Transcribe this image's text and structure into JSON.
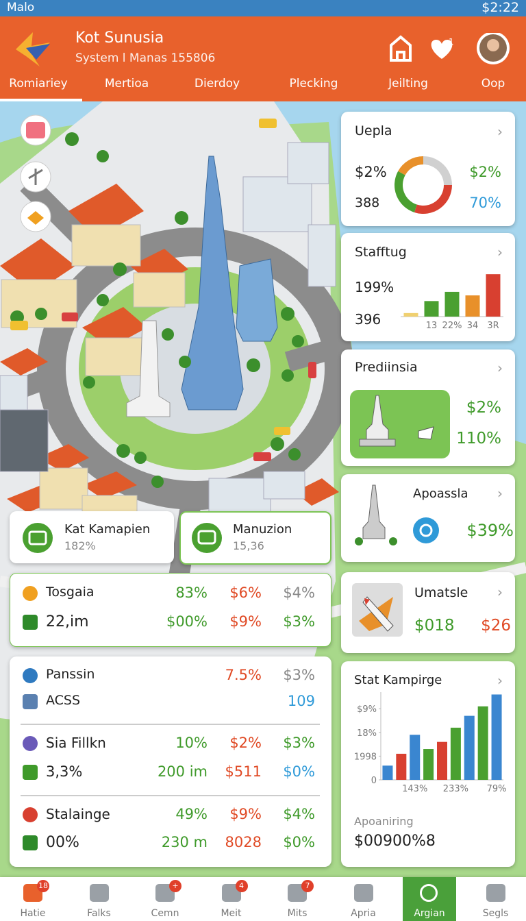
{
  "status_bar": {
    "carrier": "Malo",
    "time": "$2:22"
  },
  "header": {
    "title": "Kot Sunusia",
    "subtitle": "System l Manas 155806",
    "badge": "1",
    "tabs": [
      "Romiariey",
      "Mertioa",
      "Dierdoy",
      "Plecking",
      "Jeilting",
      "Oop"
    ]
  },
  "map_cards": [
    {
      "title": "Kat Kamapien",
      "value": "182%"
    },
    {
      "title": "Manuzion",
      "value": "15,36"
    }
  ],
  "stats_table": {
    "rows": [
      {
        "label": "Tosgaia",
        "cells": [
          "83%",
          "$6%",
          "$4%"
        ]
      },
      {
        "label": "22,im",
        "cells": [
          "$00%",
          "$9%",
          "$3%"
        ]
      }
    ]
  },
  "list": {
    "rows": [
      {
        "label": "Panssin",
        "cells": [
          "7.5%",
          "$3%"
        ]
      },
      {
        "label": "ACSS",
        "cells": [
          "109"
        ]
      },
      {
        "label": "Sia Fillkn",
        "cells": [
          "10%",
          "$2%",
          "$3%"
        ]
      },
      {
        "label": "3,3%",
        "cells": [
          "200 im",
          "$511",
          "$0%"
        ]
      },
      {
        "label": "Stalainge",
        "cells": [
          "49%",
          "$9%",
          "$4%"
        ]
      },
      {
        "label": "00%",
        "cells": [
          "230 m",
          "8028",
          "$0%"
        ]
      }
    ]
  },
  "cards": {
    "uepla": {
      "title": "Uepla",
      "left": [
        "$2%",
        "388"
      ],
      "right": [
        "$2%",
        "70%"
      ]
    },
    "stafftug": {
      "title": "Stafftug",
      "left": [
        "199%",
        "396"
      ]
    },
    "prediinsia": {
      "title": "Prediinsia",
      "right": [
        "$2%",
        "110%"
      ]
    },
    "apoassla": {
      "title": "Apoassla",
      "value": "$39%"
    },
    "umatsle": {
      "title": "Umatsle",
      "values": [
        "$018",
        "$26"
      ]
    },
    "stat": {
      "title": "Stat Kampirge",
      "caption": "Apoaniring",
      "total": "$00900%8"
    }
  },
  "chart_data": [
    {
      "type": "donut",
      "values": [
        25,
        30,
        28,
        17
      ],
      "colors": [
        "#d0d0d0",
        "#d84030",
        "#4aa030",
        "#e8902a"
      ]
    },
    {
      "type": "bar",
      "categories": [
        null,
        "13",
        "22%",
        "34",
        "3R"
      ],
      "values": [
        5,
        22,
        35,
        30,
        60
      ],
      "colors": [
        "#f0d070",
        "#4aa030",
        "#4aa030",
        "#e8902a",
        "#d84030"
      ],
      "ylim": [
        0,
        65
      ]
    },
    {
      "type": "bar",
      "categories": [
        null,
        null,
        "143%",
        null,
        null,
        "233%",
        null,
        null,
        "79%"
      ],
      "values": [
        0.6,
        1.1,
        1.9,
        1.3,
        1.6,
        2.2,
        2.7,
        3.1,
        3.6
      ],
      "colors": [
        "#3a86d0",
        "#d84030",
        "#3a86d0",
        "#4aa030",
        "#d84030",
        "#4aa030",
        "#3a86d0",
        "#4aa030",
        "#3a86d0"
      ],
      "ylim": [
        0,
        3.7
      ],
      "yticks": [
        0,
        {
          "value": 1,
          "label": "1998"
        },
        {
          "value": 2,
          "label": "18%"
        },
        {
          "value": 3,
          "label": "$9%"
        }
      ]
    }
  ],
  "nav": {
    "items": [
      {
        "label": "Hatie",
        "badge": "18"
      },
      {
        "label": "Falks"
      },
      {
        "label": "Cemn",
        "badge": "+"
      },
      {
        "label": "Meit",
        "badge": "4"
      },
      {
        "label": "Mits",
        "badge": "7"
      },
      {
        "label": "Apria"
      },
      {
        "label": "Argian",
        "active": true
      },
      {
        "label": "Segls"
      }
    ]
  }
}
